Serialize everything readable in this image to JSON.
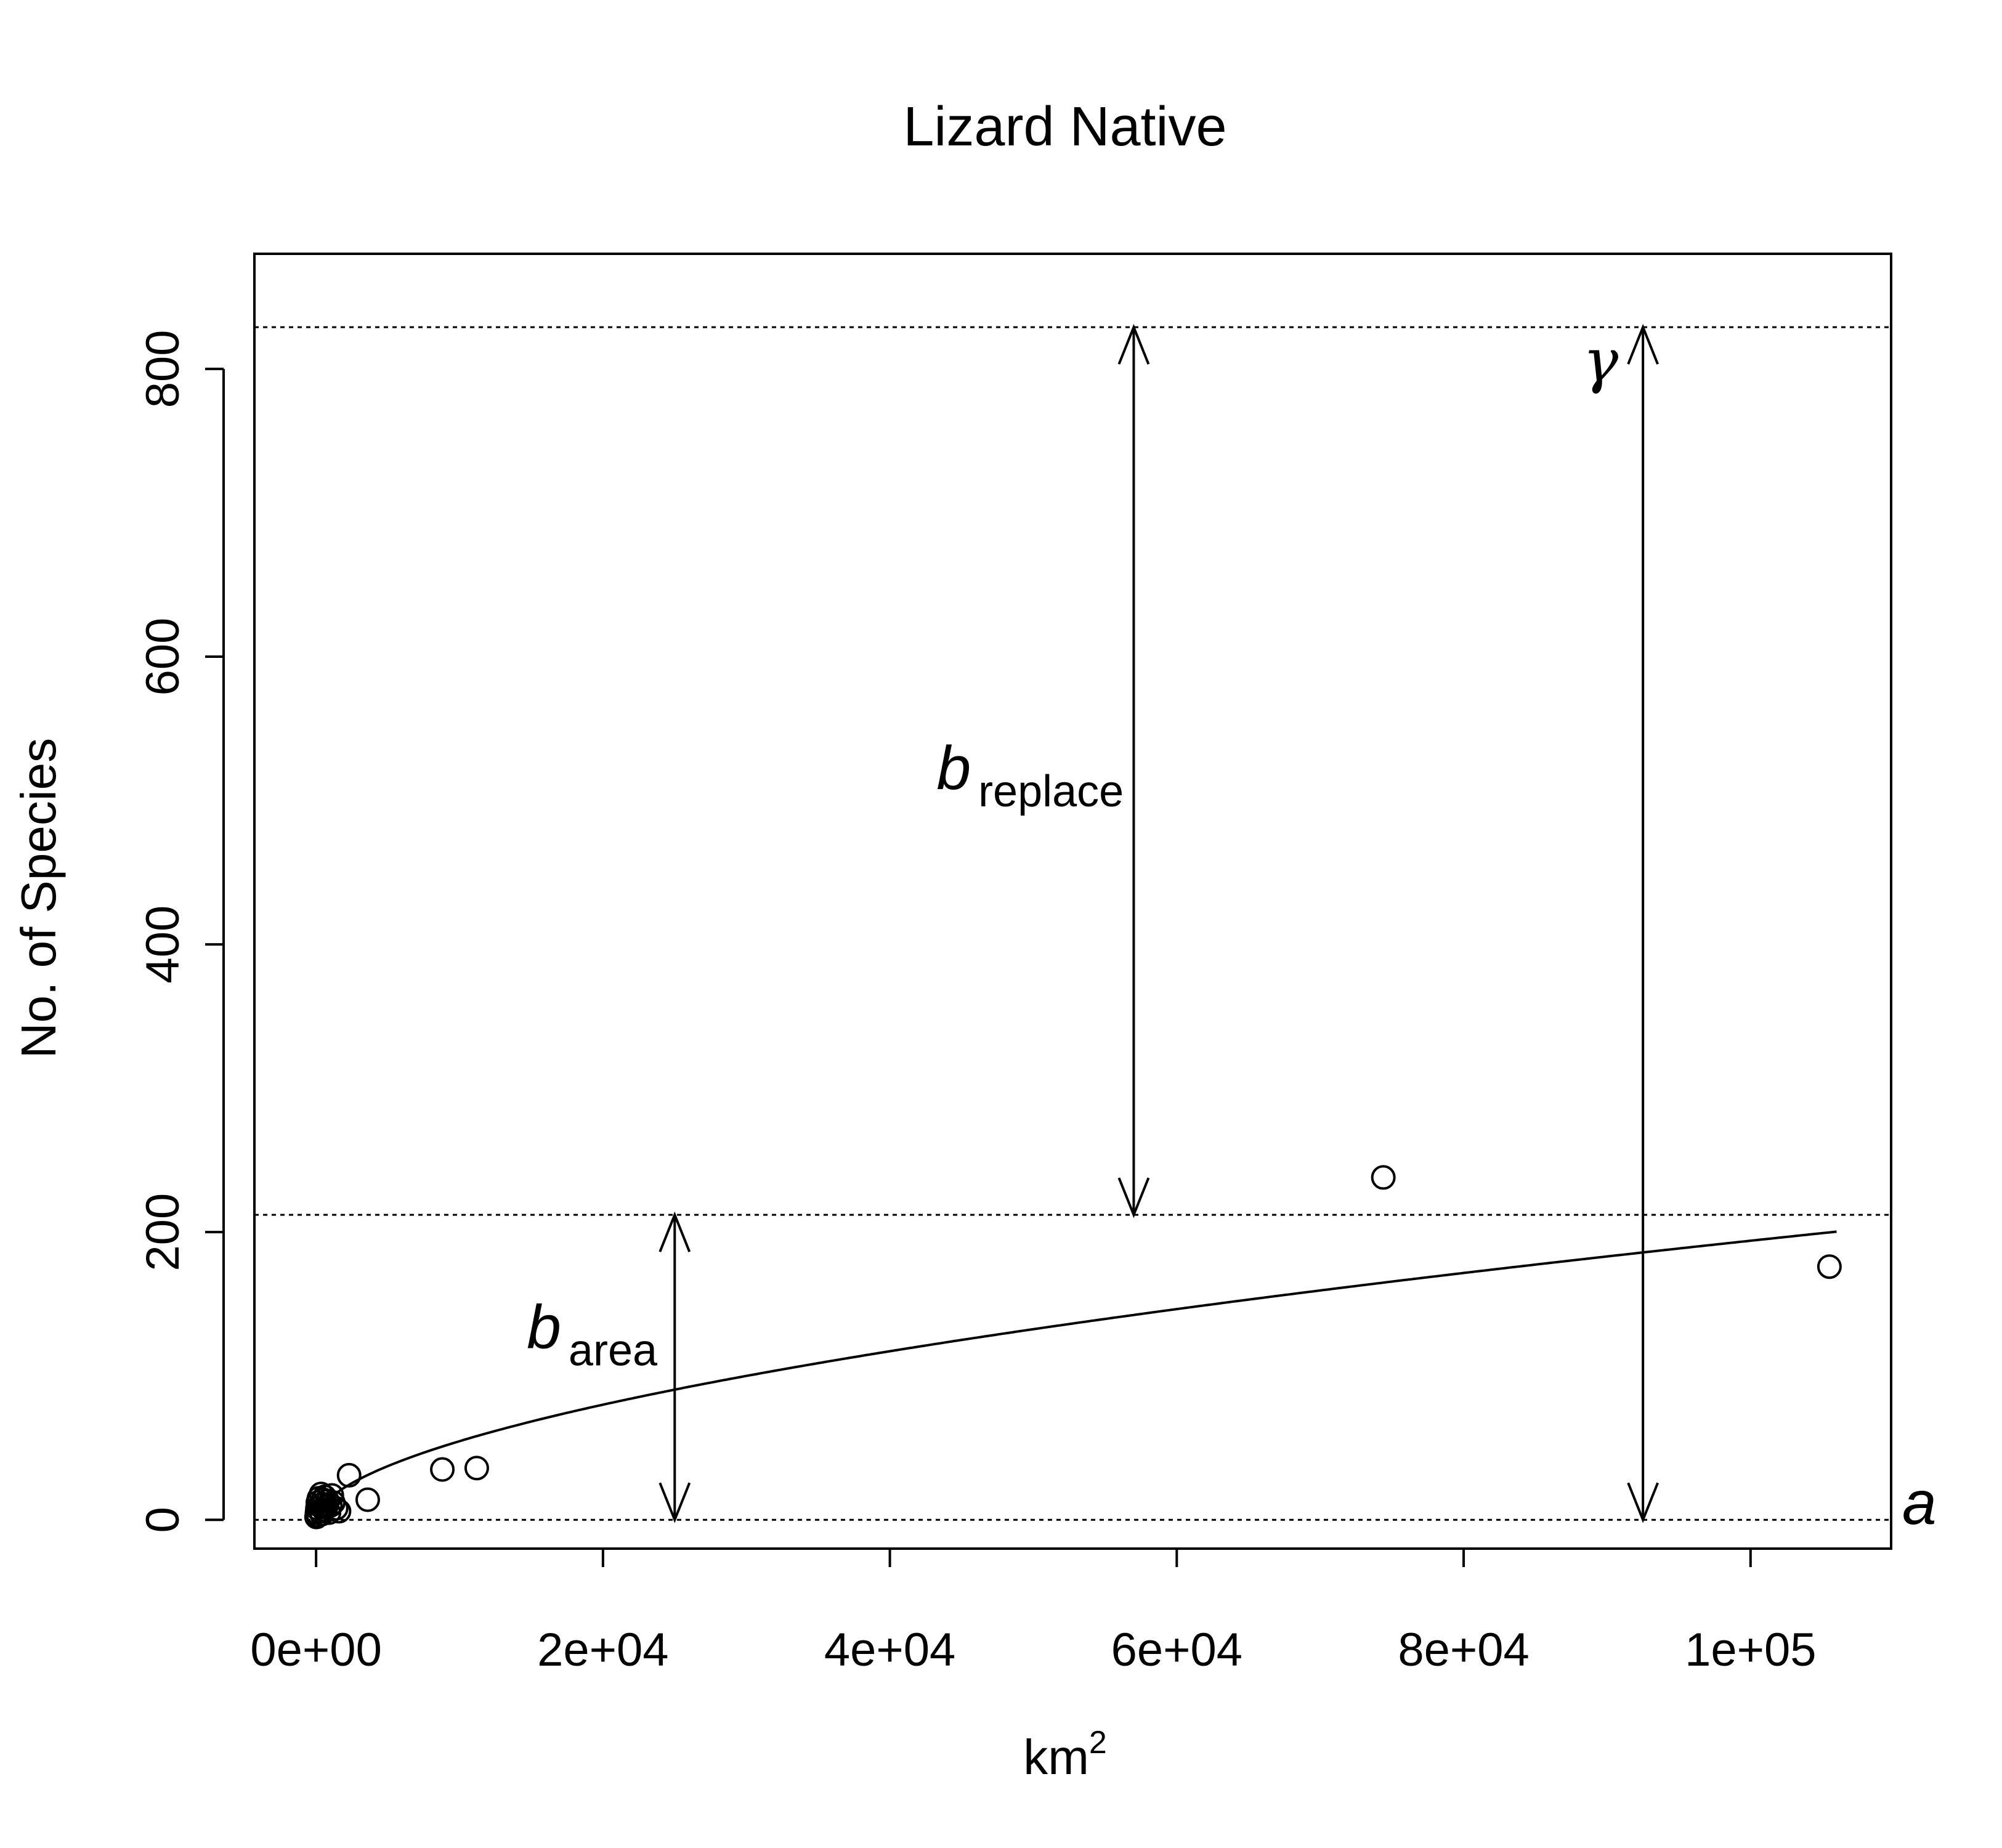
{
  "chart_data": {
    "type": "scatter",
    "title": "Lizard Native",
    "xlabel": "km",
    "xlabel_superscript": "2",
    "ylabel": "No. of Species",
    "xlim": [
      -4300,
      109800
    ],
    "ylim": [
      -20,
      880
    ],
    "xticks": [
      {
        "value": 0,
        "label": "0e+00"
      },
      {
        "value": 20000,
        "label": "2e+04"
      },
      {
        "value": 40000,
        "label": "4e+04"
      },
      {
        "value": 60000,
        "label": "6e+04"
      },
      {
        "value": 80000,
        "label": "8e+04"
      },
      {
        "value": 100000,
        "label": "1e+05"
      }
    ],
    "yticks": [
      {
        "value": 0,
        "label": "0"
      },
      {
        "value": 200,
        "label": "200"
      },
      {
        "value": 400,
        "label": "400"
      },
      {
        "value": 600,
        "label": "600"
      },
      {
        "value": 800,
        "label": "800"
      }
    ],
    "points": [
      {
        "x": 30,
        "y": 2
      },
      {
        "x": 60,
        "y": 5
      },
      {
        "x": 90,
        "y": 8
      },
      {
        "x": 120,
        "y": 12
      },
      {
        "x": 150,
        "y": 3
      },
      {
        "x": 200,
        "y": 15
      },
      {
        "x": 250,
        "y": 10
      },
      {
        "x": 300,
        "y": 6
      },
      {
        "x": 350,
        "y": 18
      },
      {
        "x": 400,
        "y": 4
      },
      {
        "x": 450,
        "y": 11
      },
      {
        "x": 500,
        "y": 14
      },
      {
        "x": 550,
        "y": 7
      },
      {
        "x": 600,
        "y": 16
      },
      {
        "x": 700,
        "y": 9
      },
      {
        "x": 800,
        "y": 13
      },
      {
        "x": 900,
        "y": 5
      },
      {
        "x": 1000,
        "y": 10
      },
      {
        "x": 1100,
        "y": 17
      },
      {
        "x": 1200,
        "y": 12
      },
      {
        "x": 1400,
        "y": 8
      },
      {
        "x": 1600,
        "y": 6
      },
      {
        "x": 2300,
        "y": 31
      },
      {
        "x": 3600,
        "y": 14
      },
      {
        "x": 8800,
        "y": 35
      },
      {
        "x": 11200,
        "y": 36
      },
      {
        "x": 74400,
        "y": 238
      },
      {
        "x": 105500,
        "y": 176
      }
    ],
    "curve": {
      "description": "fitted power curve",
      "c": 0.345,
      "z": 0.55,
      "x_start": 0,
      "x_end": 106000
    },
    "hlines": [
      {
        "y": 0,
        "style": "dotted"
      },
      {
        "y": 212,
        "style": "dotted"
      },
      {
        "y": 829,
        "style": "dotted"
      }
    ],
    "arrows": [
      {
        "x": 25000,
        "y0": 0,
        "y1": 212
      },
      {
        "x": 57000,
        "y0": 212,
        "y1": 829
      },
      {
        "x": 92500,
        "y0": 0,
        "y1": 829
      }
    ],
    "annotations": {
      "b_area": {
        "main": "b",
        "sub": "area",
        "x": 25000,
        "y": 130
      },
      "b_replace": {
        "main": "b",
        "sub": "replace",
        "x": 57000,
        "y": 510
      },
      "gamma": {
        "text": "γ",
        "x": 92500,
        "y": 800
      },
      "a": {
        "text": "a",
        "y": 10
      }
    },
    "grid": false,
    "legend": "none"
  }
}
